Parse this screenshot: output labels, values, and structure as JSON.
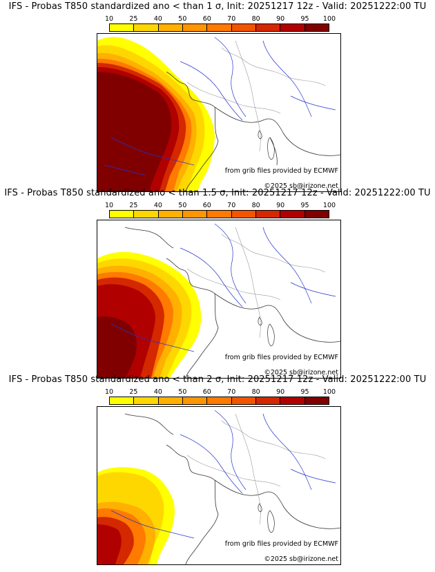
{
  "colorbar": {
    "ticks": [
      "10",
      "25",
      "40",
      "50",
      "60",
      "70",
      "80",
      "90",
      "95",
      "100"
    ],
    "colors": [
      "#ffff00",
      "#ffd700",
      "#ffb000",
      "#ff9500",
      "#ff7a00",
      "#f25500",
      "#d42800",
      "#b00000",
      "#800000"
    ]
  },
  "panels": [
    {
      "title": "IFS - Probas T850  standardized ano < than 1 σ, Init: 20251217 12z - Valid: 20251222:00 TU",
      "credit_source": "from grib files provided by ECMWF",
      "credit_copyright": "©2025 sb@irizone.net",
      "threshold_sigma": 1
    },
    {
      "title": "IFS - Probas T850  standardized ano < than 1.5 σ, Init: 20251217 12z - Valid: 20251222:00 TU",
      "credit_source": "from grib files provided by ECMWF",
      "credit_copyright": "©2025 sb@irizone.net",
      "threshold_sigma": 1.5
    },
    {
      "title": "IFS - Probas T850  standardized ano < than 2 σ, Init: 20251217 12z - Valid: 20251222:00 TU",
      "credit_source": "from grib files provided by ECMWF",
      "credit_copyright": "©2025 sb@irizone.net",
      "threshold_sigma": 2
    }
  ]
}
